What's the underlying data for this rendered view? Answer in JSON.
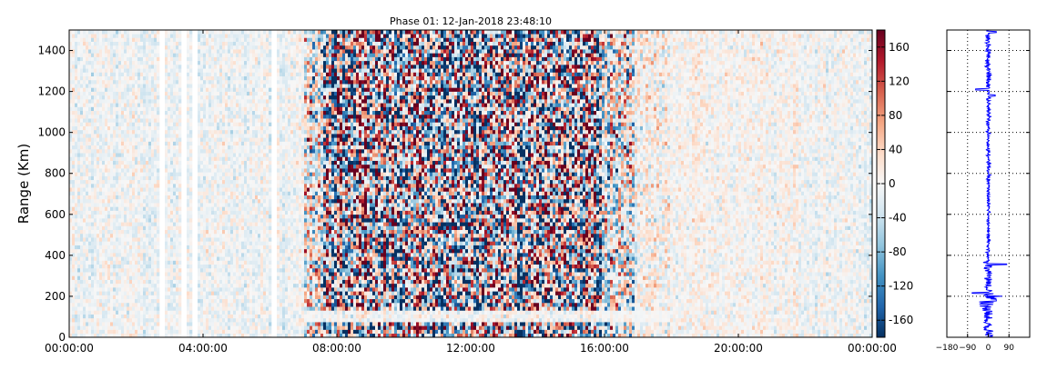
{
  "chart_data": [
    {
      "type": "heatmap",
      "title": "Phase 01: 12-Jan-2018 23:48:10",
      "xlabel": "",
      "ylabel": "Range (Km)",
      "x_ticks": [
        "00:00:00",
        "04:00:00",
        "08:00:00",
        "12:00:00",
        "16:00:00",
        "20:00:00",
        "00:00:00"
      ],
      "xlim_hours": [
        0,
        24
      ],
      "y_ticks": [
        0,
        200,
        400,
        600,
        800,
        1000,
        1200,
        1400
      ],
      "ylim": [
        0,
        1500
      ],
      "colormap": "RdBu_r",
      "color_range": [
        -180,
        180
      ],
      "colorbar_ticks": [
        160,
        120,
        80,
        40,
        0,
        -40,
        -80,
        -120,
        -160
      ],
      "data_gaps_hours": [
        2.8,
        3.45,
        3.75,
        6.1
      ],
      "high_variance_hours": [
        7.0,
        16.3
      ],
      "grid": false
    },
    {
      "type": "line",
      "title": "",
      "x_ticks": [
        "-180",
        "-90",
        "0",
        "90"
      ],
      "xlim": [
        -180,
        180
      ],
      "y_ticks": [
        0,
        200,
        400,
        600,
        800,
        1000,
        1200,
        1400
      ],
      "ylim": [
        0,
        1500
      ],
      "line_color": "#0000ff",
      "vertical_reference_lines": [
        -90,
        90
      ],
      "grid": "dotted"
    }
  ]
}
